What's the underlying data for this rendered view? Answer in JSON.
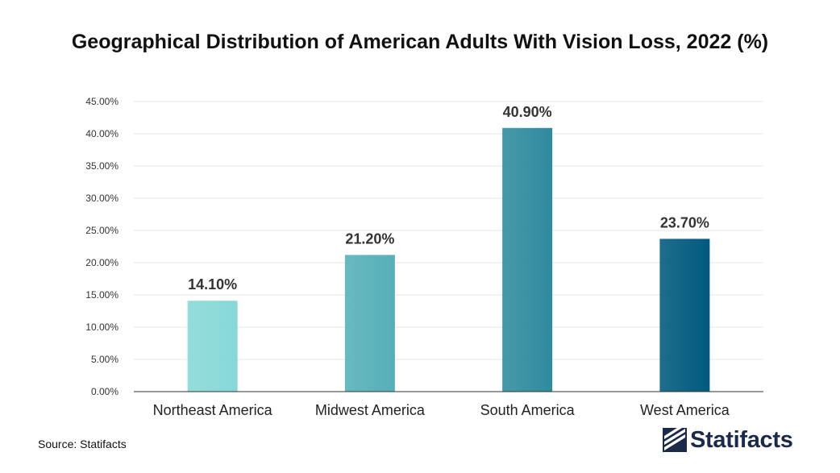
{
  "chart_data": {
    "type": "bar",
    "title": "Geographical Distribution of American Adults With Vision Loss, 2022 (%)",
    "categories": [
      "Northeast America",
      "Midwest America",
      "South America",
      "West America"
    ],
    "values": [
      14.1,
      21.2,
      40.9,
      23.7
    ],
    "value_labels": [
      "14.10%",
      "21.20%",
      "40.90%",
      "23.70%"
    ],
    "bar_colors": [
      "#86d8d8",
      "#55afb8",
      "#2e8b9e",
      "#005a7e"
    ],
    "ylim": [
      0,
      45
    ],
    "yticks": [
      0,
      5,
      10,
      15,
      20,
      25,
      30,
      35,
      40,
      45
    ],
    "ytick_labels": [
      "0.00%",
      "5.00%",
      "10.00%",
      "15.00%",
      "20.00%",
      "25.00%",
      "30.00%",
      "35.00%",
      "40.00%",
      "45.00%"
    ],
    "xlabel": "",
    "ylabel": "",
    "grid": true
  },
  "footer": {
    "source": "Source: Statifacts",
    "brand": "Statifacts"
  },
  "colors": {
    "grid": "#e6e6e6",
    "axis": "#333333",
    "brand": "#1b2a4a"
  }
}
